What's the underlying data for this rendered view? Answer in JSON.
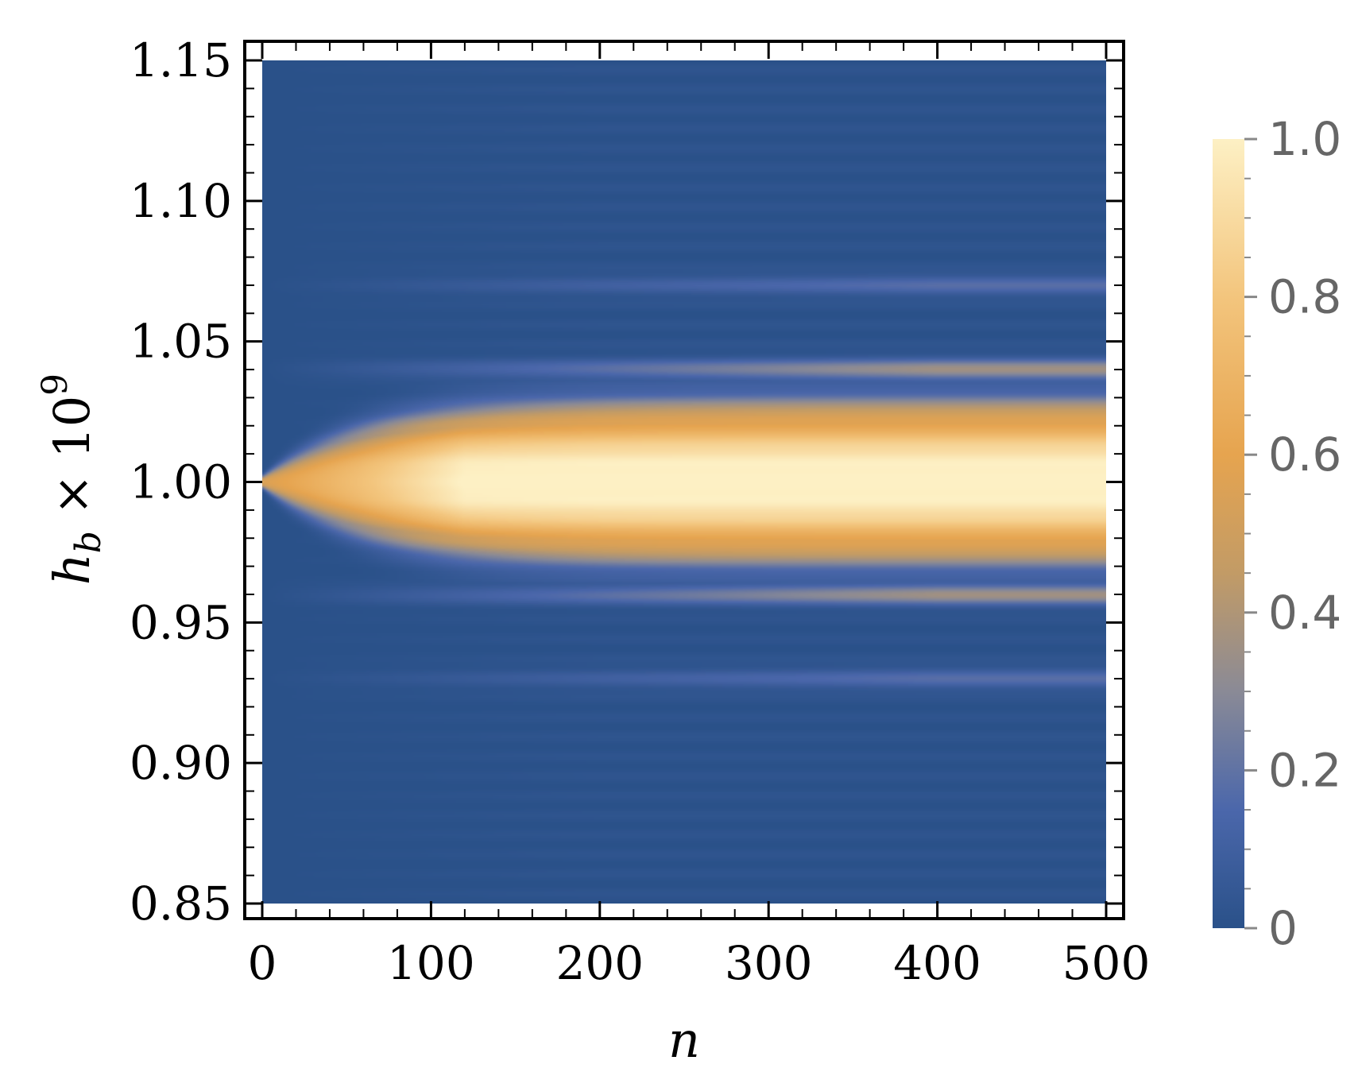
{
  "chart_data": {
    "type": "heatmap",
    "title": "",
    "xlabel": "n",
    "ylabel": {
      "base": "h",
      "subscript": "b",
      "operator": " × 10",
      "superscript": "9"
    },
    "xlim": [
      0,
      500
    ],
    "ylim": [
      0.85,
      1.15
    ],
    "x_ticks": [
      "0",
      "100",
      "200",
      "300",
      "400",
      "500"
    ],
    "y_ticks": [
      "0.85",
      "0.90",
      "0.95",
      "1.00",
      "1.05",
      "1.10",
      "1.15"
    ],
    "colorbar": {
      "range": [
        0,
        1
      ],
      "ticks": [
        "0",
        "0.2",
        "0.4",
        "0.6",
        "0.8",
        "1.0"
      ],
      "colors": [
        "#2a5189",
        "#4b67ab",
        "#8a8a96",
        "#c29b66",
        "#e6a44f",
        "#f3c57d",
        "#fdf0c4"
      ]
    },
    "grid": false,
    "description_values": {
      "central_band_center": 1.0,
      "band_half_width_at_n500": 0.025,
      "side_ridges": [
        0.96,
        1.04,
        0.93,
        1.07
      ],
      "side_ridge_peak": 0.35
    }
  }
}
